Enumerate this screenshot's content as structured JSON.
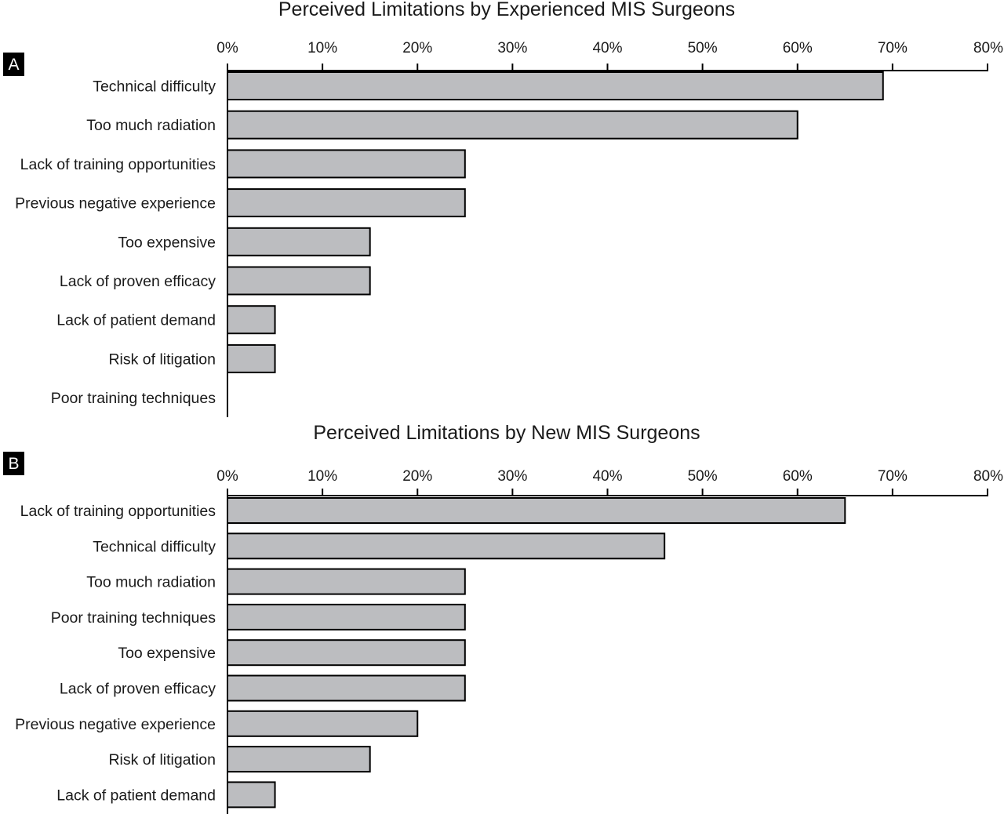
{
  "chart_data": [
    {
      "type": "bar",
      "orientation": "horizontal",
      "panel_label": "A",
      "title": "Perceived Limitations by Experienced MIS Surgeons",
      "xlim": [
        0,
        80
      ],
      "x_ticks": [
        "0%",
        "10%",
        "20%",
        "30%",
        "40%",
        "50%",
        "60%",
        "70%",
        "80%"
      ],
      "categories": [
        "Technical difficulty",
        "Too much radiation",
        "Lack of training opportunities",
        "Previous negative experience",
        "Too expensive",
        "Lack of proven efficacy",
        "Lack of patient demand",
        "Risk of litigation",
        "Poor training techniques"
      ],
      "values": [
        69,
        60,
        25,
        25,
        15,
        15,
        5,
        5,
        0
      ],
      "bar_color": "#bcbdc0",
      "axis_position": "top",
      "grid": false,
      "legend": "none"
    },
    {
      "type": "bar",
      "orientation": "horizontal",
      "panel_label": "B",
      "title": "Perceived Limitations by New MIS Surgeons",
      "xlim": [
        0,
        80
      ],
      "x_ticks": [
        "0%",
        "10%",
        "20%",
        "30%",
        "40%",
        "50%",
        "60%",
        "70%",
        "80%"
      ],
      "categories": [
        "Lack of training opportunities",
        "Technical difficulty",
        "Too much radiation",
        "Poor training techniques",
        "Too expensive",
        "Lack of proven efficacy",
        "Previous negative experience",
        "Risk of litigation",
        "Lack of patient demand"
      ],
      "values": [
        65,
        46,
        25,
        25,
        25,
        25,
        20,
        15,
        5
      ],
      "bar_color": "#bcbdc0",
      "axis_position": "top",
      "grid": false,
      "legend": "none"
    }
  ]
}
